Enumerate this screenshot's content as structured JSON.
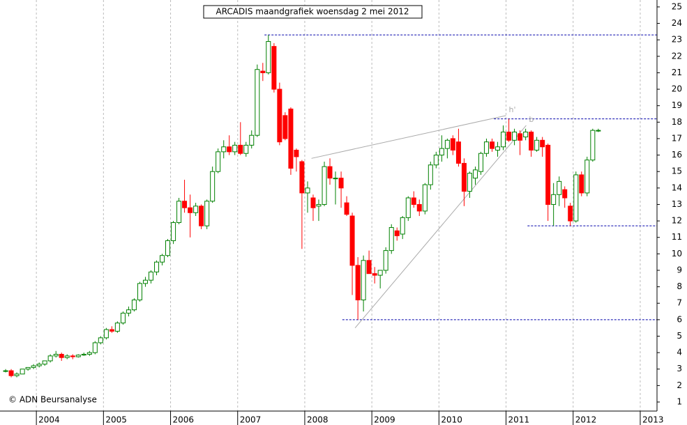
{
  "chart_data": {
    "type": "candlestick",
    "title": "ARCADIS maandgrafiek woensdag 2 mei 2012",
    "annotation": "© ADN Beursanalyse",
    "up_color": "#008000",
    "down_color": "#ff0000",
    "x": [
      2003.542,
      2003.625,
      2003.708,
      2003.792,
      2003.875,
      2003.958,
      2004.042,
      2004.125,
      2004.208,
      2004.292,
      2004.375,
      2004.458,
      2004.542,
      2004.625,
      2004.708,
      2004.792,
      2004.875,
      2004.958,
      2005.042,
      2005.125,
      2005.208,
      2005.292,
      2005.375,
      2005.458,
      2005.542,
      2005.625,
      2005.708,
      2005.792,
      2005.875,
      2005.958,
      2006.042,
      2006.125,
      2006.208,
      2006.292,
      2006.375,
      2006.458,
      2006.542,
      2006.625,
      2006.708,
      2006.792,
      2006.875,
      2006.958,
      2007.042,
      2007.125,
      2007.208,
      2007.292,
      2007.375,
      2007.458,
      2007.542,
      2007.625,
      2007.708,
      2007.792,
      2007.875,
      2007.958,
      2008.042,
      2008.125,
      2008.208,
      2008.292,
      2008.375,
      2008.458,
      2008.542,
      2008.625,
      2008.708,
      2008.792,
      2008.875,
      2008.958,
      2009.042,
      2009.125,
      2009.208,
      2009.292,
      2009.375,
      2009.458,
      2009.542,
      2009.625,
      2009.708,
      2009.792,
      2009.875,
      2009.958,
      2010.042,
      2010.125,
      2010.208,
      2010.292,
      2010.375,
      2010.458,
      2010.542,
      2010.625,
      2010.708,
      2010.792,
      2010.875,
      2010.958,
      2011.042,
      2011.125,
      2011.208,
      2011.292,
      2011.375,
      2011.458,
      2011.542,
      2011.625,
      2011.708,
      2011.792,
      2011.875,
      2011.958,
      2012.042,
      2012.125,
      2012.208,
      2012.292,
      2012.375
    ],
    "ohlc": [
      [
        2.9,
        3.0,
        2.8,
        2.9
      ],
      [
        2.9,
        3.0,
        2.5,
        2.6
      ],
      [
        2.6,
        2.8,
        2.5,
        2.7
      ],
      [
        2.7,
        3.0,
        2.7,
        3.0
      ],
      [
        3.0,
        3.1,
        2.9,
        3.1
      ],
      [
        3.1,
        3.3,
        3.0,
        3.2
      ],
      [
        3.2,
        3.4,
        3.1,
        3.3
      ],
      [
        3.3,
        3.5,
        3.2,
        3.5
      ],
      [
        3.5,
        3.9,
        3.4,
        3.8
      ],
      [
        3.8,
        4.1,
        3.7,
        3.9
      ],
      [
        3.9,
        4.0,
        3.5,
        3.7
      ],
      [
        3.7,
        3.9,
        3.6,
        3.8
      ],
      [
        3.8,
        3.9,
        3.6,
        3.75
      ],
      [
        3.75,
        3.9,
        3.7,
        3.85
      ],
      [
        3.85,
        4.0,
        3.8,
        3.9
      ],
      [
        3.9,
        4.1,
        3.8,
        4.0
      ],
      [
        4.0,
        4.7,
        3.9,
        4.6
      ],
      [
        4.6,
        5.0,
        4.5,
        4.9
      ],
      [
        4.9,
        5.5,
        4.8,
        5.4
      ],
      [
        5.4,
        5.6,
        5.2,
        5.3
      ],
      [
        5.3,
        5.9,
        5.2,
        5.8
      ],
      [
        5.8,
        6.5,
        5.7,
        6.4
      ],
      [
        6.4,
        6.8,
        6.2,
        6.6
      ],
      [
        6.6,
        7.3,
        6.5,
        7.2
      ],
      [
        7.2,
        8.3,
        7.1,
        8.2
      ],
      [
        8.2,
        8.6,
        8.0,
        8.4
      ],
      [
        8.4,
        9.0,
        8.2,
        8.9
      ],
      [
        8.9,
        9.6,
        8.7,
        9.5
      ],
      [
        9.5,
        10.0,
        9.3,
        9.9
      ],
      [
        9.9,
        10.9,
        9.8,
        10.8
      ],
      [
        10.8,
        12.0,
        10.6,
        11.9
      ],
      [
        11.9,
        13.4,
        11.8,
        13.2
      ],
      [
        13.2,
        14.5,
        12.5,
        12.8
      ],
      [
        12.8,
        13.6,
        11.0,
        12.5
      ],
      [
        12.5,
        13.1,
        12.3,
        12.9
      ],
      [
        12.9,
        13.0,
        11.5,
        11.7
      ],
      [
        11.7,
        13.3,
        11.5,
        13.2
      ],
      [
        13.2,
        15.3,
        13.1,
        15.0
      ],
      [
        15.0,
        16.4,
        14.9,
        16.2
      ],
      [
        16.2,
        16.9,
        15.8,
        16.5
      ],
      [
        16.5,
        17.2,
        16.0,
        16.2
      ],
      [
        16.2,
        16.8,
        16.0,
        16.6
      ],
      [
        16.6,
        18.0,
        16.0,
        16.1
      ],
      [
        16.1,
        16.8,
        15.9,
        16.6
      ],
      [
        16.6,
        17.5,
        16.4,
        17.2
      ],
      [
        17.2,
        21.5,
        17.1,
        21.2
      ],
      [
        21.1,
        21.6,
        20.5,
        21.0
      ],
      [
        21.0,
        23.3,
        20.9,
        22.9
      ],
      [
        22.6,
        22.8,
        19.8,
        20.0
      ],
      [
        20.0,
        20.4,
        16.6,
        16.8
      ],
      [
        18.4,
        18.6,
        16.9,
        17.0
      ],
      [
        18.8,
        18.9,
        14.8,
        15.2
      ],
      [
        16.3,
        16.4,
        15.0,
        15.9
      ],
      [
        15.6,
        15.7,
        10.3,
        13.7
      ],
      [
        13.7,
        14.4,
        12.5,
        14.0
      ],
      [
        13.4,
        13.6,
        12.0,
        12.8
      ],
      [
        12.9,
        13.3,
        12.0,
        13.0
      ],
      [
        13.0,
        15.6,
        12.9,
        15.3
      ],
      [
        15.3,
        15.8,
        14.2,
        14.6
      ],
      [
        14.6,
        15.0,
        13.0,
        14.6
      ],
      [
        14.6,
        15.0,
        12.8,
        14.0
      ],
      [
        13.1,
        13.5,
        12.3,
        12.4
      ],
      [
        12.3,
        12.5,
        7.5,
        9.3
      ],
      [
        9.3,
        9.8,
        6.0,
        7.2
      ],
      [
        7.2,
        9.9,
        6.5,
        9.6
      ],
      [
        9.6,
        10.2,
        8.8,
        8.8
      ],
      [
        8.8,
        9.2,
        8.2,
        8.7
      ],
      [
        8.7,
        9.0,
        7.9,
        9.0
      ],
      [
        9.0,
        10.4,
        8.8,
        10.2
      ],
      [
        10.2,
        11.8,
        10.0,
        11.6
      ],
      [
        11.4,
        11.6,
        10.8,
        11.1
      ],
      [
        11.2,
        12.3,
        10.9,
        12.2
      ],
      [
        12.2,
        13.5,
        12.0,
        13.4
      ],
      [
        13.4,
        13.8,
        12.8,
        13.0
      ],
      [
        13.0,
        13.3,
        12.3,
        12.6
      ],
      [
        12.6,
        14.3,
        12.4,
        14.2
      ],
      [
        14.2,
        15.6,
        13.9,
        15.4
      ],
      [
        15.4,
        16.2,
        15.2,
        16.0
      ],
      [
        16.0,
        17.2,
        15.6,
        16.4
      ],
      [
        16.4,
        17.0,
        15.8,
        16.9
      ],
      [
        17.0,
        17.2,
        16.0,
        16.3
      ],
      [
        16.8,
        17.6,
        15.3,
        15.5
      ],
      [
        15.5,
        15.8,
        12.9,
        13.8
      ],
      [
        13.8,
        15.0,
        13.4,
        14.9
      ],
      [
        14.6,
        15.3,
        14.2,
        15.1
      ],
      [
        15.0,
        16.2,
        14.8,
        16.1
      ],
      [
        16.1,
        17.0,
        15.9,
        16.8
      ],
      [
        16.8,
        17.0,
        16.2,
        16.4
      ],
      [
        16.3,
        16.8,
        15.9,
        16.5
      ],
      [
        16.5,
        17.8,
        16.3,
        17.4
      ],
      [
        17.4,
        18.2,
        16.8,
        16.9
      ],
      [
        16.9,
        17.6,
        16.6,
        17.4
      ],
      [
        17.3,
        17.5,
        16.0,
        16.9
      ],
      [
        17.1,
        17.6,
        16.9,
        17.4
      ],
      [
        17.4,
        17.5,
        15.9,
        16.3
      ],
      [
        16.3,
        17.1,
        16.2,
        16.9
      ],
      [
        16.9,
        17.1,
        15.9,
        16.5
      ],
      [
        16.6,
        16.7,
        12.0,
        13.0
      ],
      [
        13.0,
        14.3,
        11.7,
        13.6
      ],
      [
        13.6,
        14.7,
        12.9,
        14.4
      ],
      [
        13.9,
        14.1,
        12.8,
        13.4
      ],
      [
        12.9,
        13.1,
        11.7,
        12.0
      ],
      [
        12.0,
        15.0,
        11.9,
        14.8
      ],
      [
        14.8,
        15.0,
        13.5,
        13.7
      ],
      [
        13.7,
        15.9,
        13.5,
        15.7
      ],
      [
        15.7,
        17.6,
        15.6,
        17.5
      ],
      [
        17.5,
        17.6,
        17.4,
        17.5
      ]
    ],
    "xlim": [
      2003.458,
      2013.25
    ],
    "xticks": [
      2004,
      2005,
      2006,
      2007,
      2008,
      2009,
      2010,
      2011,
      2012,
      2013
    ],
    "ylim": [
      0.45,
      25.42
    ],
    "yticks": [
      1,
      2,
      3,
      4,
      5,
      6,
      7,
      8,
      9,
      10,
      11,
      12,
      13,
      14,
      15,
      16,
      17,
      18,
      19,
      20,
      21,
      22,
      23,
      24,
      25
    ],
    "grid": true,
    "hlines": [
      {
        "value": 23.3,
        "from": 2007.4
      },
      {
        "value": 18.2,
        "from": 2010.82
      },
      {
        "value": 11.7,
        "from": 2011.32
      },
      {
        "value": 6.0,
        "from": 2008.56
      }
    ],
    "trendlines": [
      {
        "label": "h'",
        "x": [
          2008.1,
          2011.0
        ],
        "y": [
          15.8,
          18.4
        ]
      },
      {
        "label": "b",
        "x": [
          2008.75,
          2011.3
        ],
        "y": [
          5.5,
          17.8
        ]
      }
    ]
  }
}
